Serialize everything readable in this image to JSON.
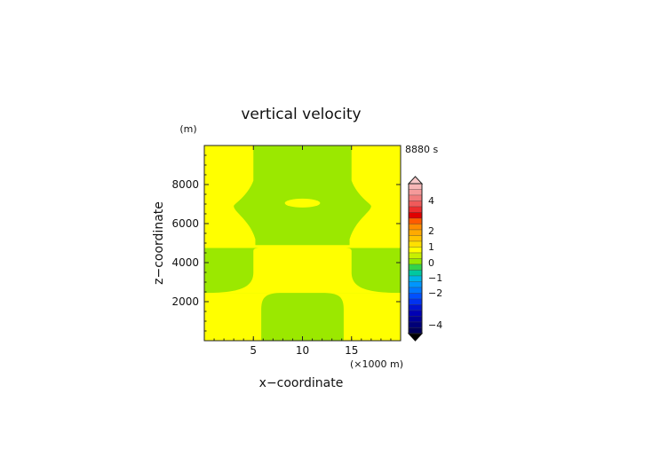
{
  "chart_data": {
    "type": "heatmap",
    "title": "vertical velocity",
    "xlabel": "x−coordinate",
    "ylabel": "z−coordinate",
    "x_unit_label": "(×1000 m)",
    "y_unit_label": "(m)",
    "time_label": "8880 s",
    "xlim": [
      0,
      20
    ],
    "ylim": [
      0,
      10000
    ],
    "x_ticks": [
      5,
      10,
      15
    ],
    "y_ticks": [
      2000,
      4000,
      6000,
      8000
    ],
    "colorbar": {
      "tick_labels": [
        "4",
        "2",
        "1",
        "0",
        "−1",
        "−2",
        "−4"
      ],
      "levels": [
        4,
        2,
        1,
        0,
        -1,
        -2,
        -4
      ],
      "colors_top_to_bottom": [
        "#f7b7b7",
        "#f59a9a",
        "#f27c7c",
        "#f05a5a",
        "#ee2e2e",
        "#e00000",
        "#ff5a00",
        "#ff8c00",
        "#ffaa00",
        "#ffc400",
        "#ffe000",
        "#ffff00",
        "#c8f000",
        "#96e800",
        "#33d34a",
        "#00c8a0",
        "#00b4e6",
        "#0096ff",
        "#0078ff",
        "#0050ff",
        "#0032f0",
        "#0014d2",
        "#0000b4",
        "#000096",
        "#000078",
        "#00005a"
      ],
      "extend": "both"
    },
    "regions": [
      {
        "value_sign": "positive",
        "color": "#ffff00",
        "description": "background"
      },
      {
        "value_sign": "weak negative",
        "color": "#9be800",
        "description": "central column x 5-15 km above 7.5 km and z 2.4-4.7 km band"
      }
    ],
    "colors": {
      "positive": "#ffff00",
      "weak_negative": "#9be800"
    }
  }
}
